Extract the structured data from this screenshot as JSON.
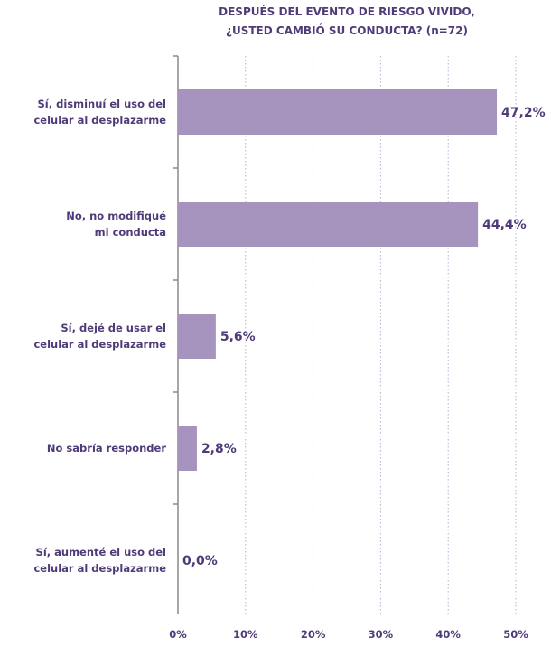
{
  "chart_data": {
    "type": "bar",
    "orientation": "horizontal",
    "title_lines": [
      "DESPUÉS DEL EVENTO DE RIESGO VIVIDO,",
      "¿USTED CAMBIÓ SU CONDUCTA? (n=72)"
    ],
    "categories": [
      [
        "Sí, disminuí el uso del",
        "celular al desplazarme"
      ],
      [
        "No, no modifiqué",
        "mi conducta"
      ],
      [
        "Sí, dejé de usar el",
        "celular al desplazarme"
      ],
      [
        "No sabría responder"
      ],
      [
        "Sí, aumenté el uso del",
        "celular al desplazarme"
      ]
    ],
    "values": [
      47.2,
      44.4,
      5.6,
      2.8,
      0.0
    ],
    "value_labels": [
      "47,2%",
      "44,4%",
      "5,6%",
      "2,8%",
      "0,0%"
    ],
    "xlim": [
      0,
      50
    ],
    "ticks": [
      0,
      10,
      20,
      30,
      40,
      50
    ],
    "tick_labels": [
      "0%",
      "10%",
      "20%",
      "30%",
      "40%",
      "50%"
    ],
    "grid": "vertical dotted",
    "colors": {
      "bar": "#a694bf",
      "text": "#4e3b78",
      "grid": "#b8aed0",
      "axis": "#888888"
    }
  }
}
